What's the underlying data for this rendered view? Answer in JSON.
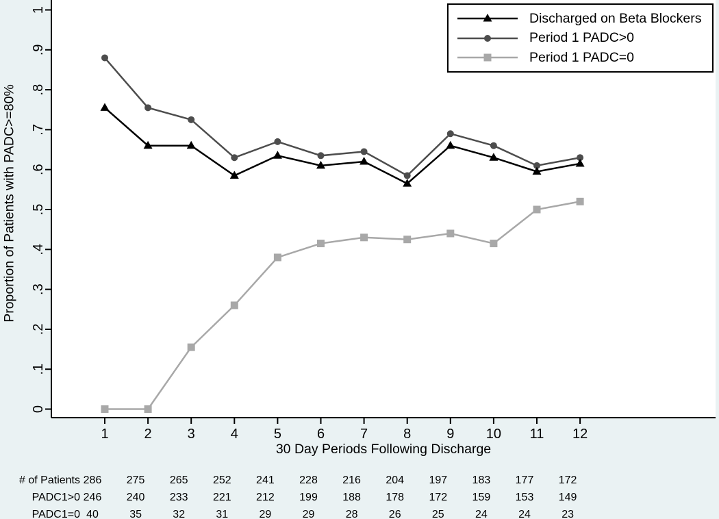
{
  "colors": {
    "background": "#eaf2f3",
    "plot_background": "#ffffff",
    "axis": "#000000",
    "text": "#000000",
    "series_beta_blockers": "#000000",
    "series_padc_gt0": "#4d4d4d",
    "series_padc_eq0": "#a8a8a8",
    "legend_background": "#ffffff",
    "legend_border": "#000000"
  },
  "chart_data": {
    "type": "line",
    "title": "",
    "xlabel": "30 Day Periods Following Discharge",
    "ylabel": "Proportion of Patients with PADC>=80%",
    "x": [
      1,
      2,
      3,
      4,
      5,
      6,
      7,
      8,
      9,
      10,
      11,
      12
    ],
    "xtick_labels": [
      "1",
      "2",
      "3",
      "4",
      "5",
      "6",
      "7",
      "8",
      "9",
      "10",
      "11",
      "12"
    ],
    "xlim": [
      0,
      13
    ],
    "ylim": [
      0,
      1
    ],
    "ytick_values": [
      0,
      0.1,
      0.2,
      0.3,
      0.4,
      0.5,
      0.6,
      0.7,
      0.8,
      0.9,
      1
    ],
    "ytick_labels": [
      "0",
      ".1",
      ".2",
      ".3",
      ".4",
      ".5",
      ".6",
      ".7",
      ".8",
      ".9",
      "1"
    ],
    "grid": "off",
    "legend_position": "top-right",
    "series": [
      {
        "name": "Discharged on Beta Blockers",
        "marker": "triangle",
        "color": "#000000",
        "values": [
          0.755,
          0.66,
          0.66,
          0.585,
          0.635,
          0.61,
          0.62,
          0.565,
          0.66,
          0.63,
          0.595,
          0.615
        ]
      },
      {
        "name": "Period 1 PADC>0",
        "marker": "circle",
        "color": "#4d4d4d",
        "values": [
          0.88,
          0.755,
          0.725,
          0.63,
          0.67,
          0.635,
          0.645,
          0.585,
          0.69,
          0.66,
          0.61,
          0.63
        ]
      },
      {
        "name": "Period 1 PADC=0",
        "marker": "square",
        "color": "#a8a8a8",
        "values": [
          0.0,
          0.0,
          0.155,
          0.26,
          0.38,
          0.415,
          0.43,
          0.425,
          0.44,
          0.415,
          0.5,
          0.52
        ]
      }
    ]
  },
  "counts_table": {
    "rows": [
      {
        "label": "# of Patients",
        "values": [
          "286",
          "275",
          "265",
          "252",
          "241",
          "228",
          "216",
          "204",
          "197",
          "183",
          "177",
          "172"
        ]
      },
      {
        "label": "PADC1>0",
        "values": [
          "246",
          "240",
          "233",
          "221",
          "212",
          "199",
          "188",
          "178",
          "172",
          "159",
          "153",
          "149"
        ]
      },
      {
        "label": "PADC1=0",
        "values": [
          "40",
          "35",
          "32",
          "31",
          "29",
          "29",
          "28",
          "26",
          "25",
          "24",
          "24",
          "23"
        ]
      }
    ]
  }
}
